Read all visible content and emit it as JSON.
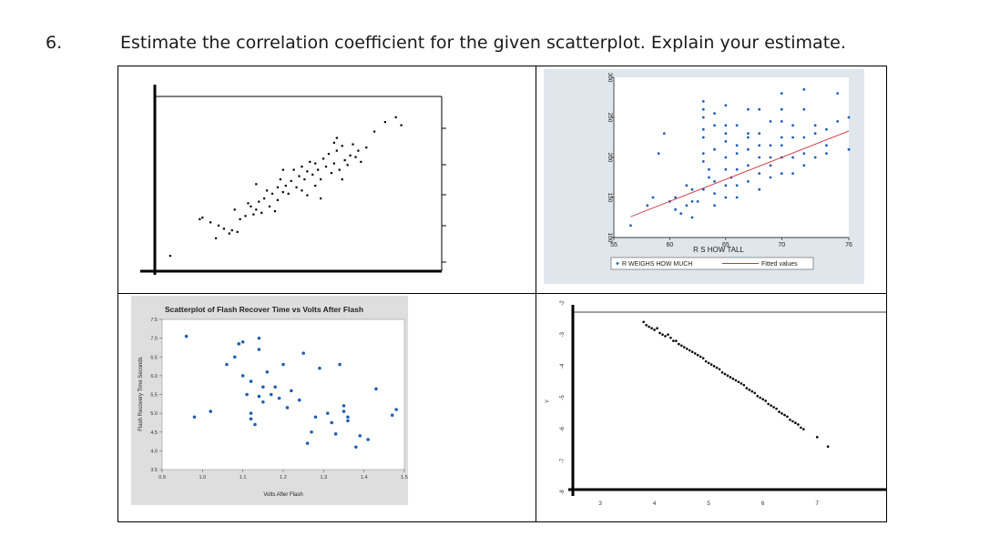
{
  "question": {
    "number": "6.",
    "text": "Estimate the correlation coefficient for the given scatterplot.  Explain your estimate."
  },
  "chart_data": [
    {
      "type": "scatter",
      "title": "",
      "xlabel": "",
      "ylabel": "",
      "grid": false,
      "xlim": [
        0,
        100
      ],
      "ylim": [
        0,
        100
      ],
      "points": [
        [
          4,
          4
        ],
        [
          15,
          27
        ],
        [
          16,
          28
        ],
        [
          19,
          25
        ],
        [
          21,
          15
        ],
        [
          22,
          23
        ],
        [
          24,
          21
        ],
        [
          26,
          18
        ],
        [
          27,
          20
        ],
        [
          29,
          19
        ],
        [
          30,
          27
        ],
        [
          32,
          29
        ],
        [
          33,
          37
        ],
        [
          34,
          35
        ],
        [
          35,
          30
        ],
        [
          36,
          33
        ],
        [
          37,
          38
        ],
        [
          38,
          31
        ],
        [
          39,
          40
        ],
        [
          40,
          45
        ],
        [
          41,
          35
        ],
        [
          42,
          43
        ],
        [
          43,
          32
        ],
        [
          44,
          39
        ],
        [
          44,
          47
        ],
        [
          45,
          52
        ],
        [
          46,
          44
        ],
        [
          47,
          48
        ],
        [
          48,
          43
        ],
        [
          49,
          51
        ],
        [
          50,
          58
        ],
        [
          51,
          47
        ],
        [
          52,
          54
        ],
        [
          53,
          45
        ],
        [
          53,
          60
        ],
        [
          54,
          52
        ],
        [
          55,
          42
        ],
        [
          55,
          57
        ],
        [
          56,
          63
        ],
        [
          57,
          55
        ],
        [
          58,
          48
        ],
        [
          58,
          62
        ],
        [
          59,
          58
        ],
        [
          60,
          52
        ],
        [
          61,
          65
        ],
        [
          62,
          60
        ],
        [
          63,
          68
        ],
        [
          64,
          56
        ],
        [
          65,
          62
        ],
        [
          66,
          70
        ],
        [
          67,
          58
        ],
        [
          68,
          73
        ],
        [
          69,
          64
        ],
        [
          70,
          61
        ],
        [
          71,
          67
        ],
        [
          72,
          74
        ],
        [
          73,
          66
        ],
        [
          74,
          70
        ],
        [
          75,
          63
        ],
        [
          60,
          40
        ],
        [
          77,
          72
        ],
        [
          66,
          78
        ],
        [
          65,
          75
        ],
        [
          80,
          82
        ],
        [
          68,
          52
        ],
        [
          84,
          88
        ],
        [
          88,
          91
        ],
        [
          90,
          86
        ],
        [
          46,
          58
        ],
        [
          36,
          49
        ],
        [
          28,
          33
        ]
      ]
    },
    {
      "type": "scatter",
      "title": "",
      "xlabel": "R S HOW TALL",
      "ylabel": "",
      "grid": false,
      "xlim": [
        55,
        76
      ],
      "ylim": [
        100,
        300
      ],
      "x_ticks": [
        "55",
        "60",
        "65",
        "70",
        "76"
      ],
      "y_ticks": [
        "100",
        "150",
        "200",
        "250",
        "300"
      ],
      "series": [
        {
          "name": "R WEIGHS HOW MUCH",
          "points": [
            [
              56.5,
              115
            ],
            [
              58,
              140
            ],
            [
              58.5,
              150
            ],
            [
              59,
              205
            ],
            [
              59.5,
              230
            ],
            [
              60,
              145
            ],
            [
              60.5,
              135
            ],
            [
              60.5,
              150
            ],
            [
              61,
              130
            ],
            [
              61.5,
              140
            ],
            [
              61.5,
              165
            ],
            [
              62,
              125
            ],
            [
              62,
              145
            ],
            [
              62,
              160
            ],
            [
              62.5,
              145
            ],
            [
              63,
              160
            ],
            [
              63,
              195
            ],
            [
              63,
              205
            ],
            [
              63,
              225
            ],
            [
              63,
              235
            ],
            [
              63,
              250
            ],
            [
              63,
              260
            ],
            [
              63,
              270
            ],
            [
              63.5,
              175
            ],
            [
              63.5,
              185
            ],
            [
              64,
              140
            ],
            [
              64,
              155
            ],
            [
              64,
              170
            ],
            [
              64,
              210
            ],
            [
              64,
              240
            ],
            [
              64,
              255
            ],
            [
              65,
              150
            ],
            [
              65,
              165
            ],
            [
              65,
              185
            ],
            [
              65,
              200
            ],
            [
              65,
              220
            ],
            [
              65,
              230
            ],
            [
              65,
              240
            ],
            [
              65,
              265
            ],
            [
              65.5,
              175
            ],
            [
              66,
              150
            ],
            [
              66,
              165
            ],
            [
              66,
              185
            ],
            [
              66,
              205
            ],
            [
              66,
              215
            ],
            [
              66,
              240
            ],
            [
              67,
              170
            ],
            [
              67,
              190
            ],
            [
              67,
              210
            ],
            [
              67,
              225
            ],
            [
              67,
              230
            ],
            [
              67,
              260
            ],
            [
              68,
              160
            ],
            [
              68,
              180
            ],
            [
              68,
              200
            ],
            [
              68,
              215
            ],
            [
              68,
              230
            ],
            [
              68,
              260
            ],
            [
              69,
              175
            ],
            [
              69,
              190
            ],
            [
              69,
              200
            ],
            [
              69,
              215
            ],
            [
              69,
              245
            ],
            [
              70,
              180
            ],
            [
              70,
              200
            ],
            [
              70,
              215
            ],
            [
              70,
              225
            ],
            [
              70,
              245
            ],
            [
              70,
              260
            ],
            [
              70,
              280
            ],
            [
              71,
              180
            ],
            [
              71,
              200
            ],
            [
              71,
              225
            ],
            [
              71,
              240
            ],
            [
              72,
              190
            ],
            [
              72,
              205
            ],
            [
              72,
              225
            ],
            [
              72,
              260
            ],
            [
              72,
              285
            ],
            [
              73,
              200
            ],
            [
              73,
              230
            ],
            [
              73,
              240
            ],
            [
              74,
              205
            ],
            [
              74,
              215
            ],
            [
              74,
              235
            ],
            [
              75,
              245
            ],
            [
              75,
              280
            ],
            [
              76,
              210
            ],
            [
              76,
              250
            ]
          ]
        },
        {
          "name": "Fitted values",
          "line": [
            [
              56.5,
              126
            ],
            [
              76,
              233
            ]
          ]
        }
      ]
    },
    {
      "type": "scatter",
      "title": "Scatterplot of Flash Recover Time vs Volts After Flash",
      "xlabel": "Volts After Flash",
      "ylabel": "Flash Recovery Time Seconds",
      "grid": false,
      "xlim": [
        0.9,
        1.5
      ],
      "ylim": [
        3.5,
        7.5
      ],
      "x_ticks": [
        "0.9",
        "1.0",
        "1.1",
        "1.2",
        "1.3",
        "1.4",
        "1.5"
      ],
      "y_ticks": [
        "3.5",
        "4.0",
        "4.5",
        "5.0",
        "5.5",
        "6.0",
        "6.5",
        "7.0",
        "7.5"
      ],
      "points": [
        [
          0.96,
          7.05
        ],
        [
          0.98,
          4.9
        ],
        [
          1.02,
          5.05
        ],
        [
          1.06,
          6.3
        ],
        [
          1.08,
          6.5
        ],
        [
          1.09,
          6.85
        ],
        [
          1.1,
          6.9
        ],
        [
          1.1,
          6.0
        ],
        [
          1.11,
          5.5
        ],
        [
          1.12,
          5.0
        ],
        [
          1.12,
          4.85
        ],
        [
          1.13,
          4.7
        ],
        [
          1.14,
          7.0
        ],
        [
          1.14,
          6.7
        ],
        [
          1.15,
          5.3
        ],
        [
          1.15,
          5.7
        ],
        [
          1.16,
          6.1
        ],
        [
          1.17,
          5.5
        ],
        [
          1.18,
          5.7
        ],
        [
          1.19,
          5.4
        ],
        [
          1.2,
          6.3
        ],
        [
          1.21,
          5.15
        ],
        [
          1.22,
          5.6
        ],
        [
          1.24,
          5.35
        ],
        [
          1.25,
          6.6
        ],
        [
          1.26,
          4.2
        ],
        [
          1.27,
          4.5
        ],
        [
          1.28,
          4.9
        ],
        [
          1.29,
          6.2
        ],
        [
          1.31,
          5.0
        ],
        [
          1.32,
          4.75
        ],
        [
          1.33,
          4.45
        ],
        [
          1.34,
          6.3
        ],
        [
          1.35,
          5.2
        ],
        [
          1.35,
          5.05
        ],
        [
          1.36,
          4.9
        ],
        [
          1.36,
          4.8
        ],
        [
          1.38,
          4.1
        ],
        [
          1.39,
          4.4
        ],
        [
          1.41,
          4.3
        ],
        [
          1.43,
          5.65
        ],
        [
          1.47,
          4.95
        ],
        [
          1.48,
          5.1
        ],
        [
          1.12,
          5.85
        ],
        [
          1.14,
          5.45
        ]
      ]
    },
    {
      "type": "scatter",
      "title": "",
      "xlabel": "",
      "ylabel": "Y",
      "grid": false,
      "xlim": [
        3,
        7.5
      ],
      "ylim": [
        -8,
        -2
      ],
      "x_ticks": [
        "3",
        "4",
        "5",
        "6",
        "7"
      ],
      "y_ticks": [
        "-2",
        "-3",
        "-4",
        "-5",
        "-6",
        "-7",
        "-8"
      ],
      "points": [
        [
          3.8,
          -2.6
        ],
        [
          3.85,
          -2.7
        ],
        [
          3.9,
          -2.75
        ],
        [
          3.95,
          -2.8
        ],
        [
          4.0,
          -2.85
        ],
        [
          4.05,
          -2.8
        ],
        [
          4.1,
          -2.95
        ],
        [
          4.15,
          -3.0
        ],
        [
          4.2,
          -3.05
        ],
        [
          4.25,
          -3.0
        ],
        [
          4.3,
          -3.1
        ],
        [
          4.35,
          -3.2
        ],
        [
          4.4,
          -3.2
        ],
        [
          4.45,
          -3.3
        ],
        [
          4.5,
          -3.35
        ],
        [
          4.55,
          -3.4
        ],
        [
          4.6,
          -3.45
        ],
        [
          4.65,
          -3.5
        ],
        [
          4.7,
          -3.55
        ],
        [
          4.75,
          -3.6
        ],
        [
          4.8,
          -3.65
        ],
        [
          4.85,
          -3.7
        ],
        [
          4.9,
          -3.75
        ],
        [
          4.95,
          -3.85
        ],
        [
          5.0,
          -3.9
        ],
        [
          5.05,
          -3.95
        ],
        [
          5.1,
          -4.0
        ],
        [
          5.15,
          -4.05
        ],
        [
          5.2,
          -4.1
        ],
        [
          5.25,
          -4.2
        ],
        [
          5.3,
          -4.25
        ],
        [
          5.35,
          -4.3
        ],
        [
          5.4,
          -4.35
        ],
        [
          5.45,
          -4.4
        ],
        [
          5.5,
          -4.45
        ],
        [
          5.55,
          -4.5
        ],
        [
          5.6,
          -4.55
        ],
        [
          5.65,
          -4.6
        ],
        [
          5.7,
          -4.7
        ],
        [
          5.75,
          -4.75
        ],
        [
          5.8,
          -4.8
        ],
        [
          5.85,
          -4.85
        ],
        [
          5.9,
          -4.95
        ],
        [
          5.95,
          -5.0
        ],
        [
          6.0,
          -5.05
        ],
        [
          6.05,
          -5.1
        ],
        [
          6.1,
          -5.2
        ],
        [
          6.15,
          -5.25
        ],
        [
          6.2,
          -5.3
        ],
        [
          6.25,
          -5.35
        ],
        [
          6.3,
          -5.45
        ],
        [
          6.35,
          -5.5
        ],
        [
          6.4,
          -5.55
        ],
        [
          6.45,
          -5.6
        ],
        [
          6.5,
          -5.7
        ],
        [
          6.55,
          -5.75
        ],
        [
          6.6,
          -5.8
        ],
        [
          6.65,
          -5.85
        ],
        [
          6.7,
          -5.95
        ],
        [
          6.75,
          -6.0
        ],
        [
          7.2,
          -6.55
        ],
        [
          7.0,
          -6.25
        ]
      ]
    }
  ],
  "colors": {
    "blue_marker": "#1f5fb4",
    "fit_line": "#d0323c",
    "panel_bg": "#dfe6ec",
    "minitab_bg": "#dedede"
  }
}
